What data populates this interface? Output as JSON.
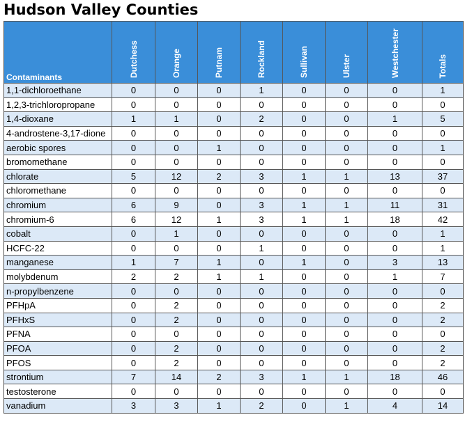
{
  "title": "Hudson Valley Counties",
  "table": {
    "header": [
      "Contaminants",
      "Dutchess",
      "Orange",
      "Putnam",
      "Rockland",
      "Sullivan",
      "Ulster",
      "Westchester",
      "Totals"
    ],
    "rows": [
      [
        "1,1-dichloroethane",
        0,
        0,
        0,
        1,
        0,
        0,
        0,
        1
      ],
      [
        "1,2,3-trichloropropane",
        0,
        0,
        0,
        0,
        0,
        0,
        0,
        0
      ],
      [
        "1,4-dioxane",
        1,
        1,
        0,
        2,
        0,
        0,
        1,
        5
      ],
      [
        "4-androstene-3,17-dione",
        0,
        0,
        0,
        0,
        0,
        0,
        0,
        0
      ],
      [
        "aerobic spores",
        0,
        0,
        1,
        0,
        0,
        0,
        0,
        1
      ],
      [
        "bromomethane",
        0,
        0,
        0,
        0,
        0,
        0,
        0,
        0
      ],
      [
        "chlorate",
        5,
        12,
        2,
        3,
        1,
        1,
        13,
        37
      ],
      [
        "chloromethane",
        0,
        0,
        0,
        0,
        0,
        0,
        0,
        0
      ],
      [
        "chromium",
        6,
        9,
        0,
        3,
        1,
        1,
        11,
        31
      ],
      [
        "chromium-6",
        6,
        12,
        1,
        3,
        1,
        1,
        18,
        42
      ],
      [
        "cobalt",
        0,
        1,
        0,
        0,
        0,
        0,
        0,
        1
      ],
      [
        "HCFC-22",
        0,
        0,
        0,
        1,
        0,
        0,
        0,
        1
      ],
      [
        "manganese",
        1,
        7,
        1,
        0,
        1,
        0,
        3,
        13
      ],
      [
        "molybdenum",
        2,
        2,
        1,
        1,
        0,
        0,
        1,
        7
      ],
      [
        "n-propylbenzene",
        0,
        0,
        0,
        0,
        0,
        0,
        0,
        0
      ],
      [
        "PFHpA",
        0,
        2,
        0,
        0,
        0,
        0,
        0,
        2
      ],
      [
        "PFHxS",
        0,
        2,
        0,
        0,
        0,
        0,
        0,
        2
      ],
      [
        "PFNA",
        0,
        0,
        0,
        0,
        0,
        0,
        0,
        0
      ],
      [
        "PFOA",
        0,
        2,
        0,
        0,
        0,
        0,
        0,
        2
      ],
      [
        "PFOS",
        0,
        2,
        0,
        0,
        0,
        0,
        0,
        2
      ],
      [
        "strontium",
        7,
        14,
        2,
        3,
        1,
        1,
        18,
        46
      ],
      [
        "testosterone",
        0,
        0,
        0,
        0,
        0,
        0,
        0,
        0
      ],
      [
        "vanadium",
        3,
        3,
        1,
        2,
        0,
        1,
        4,
        14
      ]
    ]
  }
}
